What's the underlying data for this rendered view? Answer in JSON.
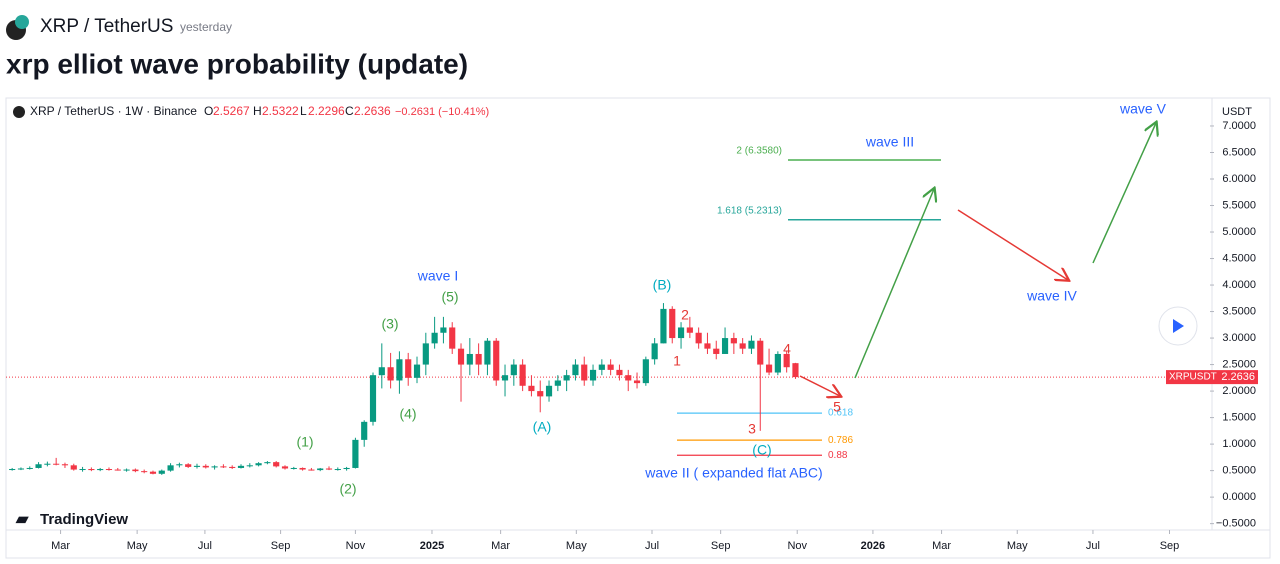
{
  "header": {
    "symbol": "XRP / TetherUS",
    "time": "yesterday",
    "title": "xrp elliot wave probability (update)"
  },
  "chart_data": {
    "type": "candlestick",
    "legend": {
      "symbol": "XRP / TetherUS · 1W · Binance",
      "o_label": "O",
      "o": "2.5267",
      "h_label": "H",
      "h": "2.5322",
      "l_label": "L",
      "l": "2.2296",
      "c_label": "C",
      "c": "2.2636",
      "change": "−0.2631 (−10.41%)"
    },
    "currency": "USDT",
    "brand": "TradingView",
    "up_color": "#089981",
    "down_color": "#f23645",
    "x": [
      0,
      1,
      2,
      3,
      4,
      5,
      6,
      7,
      8,
      9,
      10,
      11,
      12,
      13,
      14,
      15,
      16,
      17,
      18,
      19,
      20,
      21,
      22,
      23,
      24,
      25,
      26,
      27,
      28,
      29,
      30,
      31,
      32,
      33,
      34,
      35,
      36,
      37,
      38,
      39,
      40,
      41,
      42,
      43,
      44,
      45,
      46,
      47,
      48,
      49,
      50,
      51,
      52,
      53,
      54,
      55,
      56,
      57,
      58,
      59,
      60,
      61,
      62,
      63,
      64,
      65,
      66,
      67,
      68,
      69,
      70,
      71,
      72,
      73,
      74,
      75,
      76,
      77,
      78,
      79,
      80,
      81,
      82,
      83,
      84,
      85,
      86,
      87,
      88,
      89
    ],
    "candles": [
      [
        0.52,
        0.55,
        0.5,
        0.53
      ],
      [
        0.53,
        0.56,
        0.51,
        0.54
      ],
      [
        0.54,
        0.58,
        0.52,
        0.55
      ],
      [
        0.55,
        0.66,
        0.54,
        0.62
      ],
      [
        0.62,
        0.67,
        0.58,
        0.63
      ],
      [
        0.63,
        0.74,
        0.6,
        0.62
      ],
      [
        0.62,
        0.65,
        0.55,
        0.6
      ],
      [
        0.6,
        0.63,
        0.5,
        0.52
      ],
      [
        0.52,
        0.57,
        0.48,
        0.53
      ],
      [
        0.53,
        0.56,
        0.49,
        0.51
      ],
      [
        0.51,
        0.55,
        0.49,
        0.53
      ],
      [
        0.53,
        0.56,
        0.5,
        0.52
      ],
      [
        0.52,
        0.55,
        0.5,
        0.51
      ],
      [
        0.51,
        0.54,
        0.48,
        0.52
      ],
      [
        0.52,
        0.54,
        0.47,
        0.49
      ],
      [
        0.49,
        0.52,
        0.45,
        0.48
      ],
      [
        0.48,
        0.5,
        0.43,
        0.44
      ],
      [
        0.44,
        0.52,
        0.42,
        0.5
      ],
      [
        0.5,
        0.64,
        0.48,
        0.6
      ],
      [
        0.6,
        0.65,
        0.56,
        0.62
      ],
      [
        0.62,
        0.64,
        0.55,
        0.57
      ],
      [
        0.57,
        0.63,
        0.54,
        0.59
      ],
      [
        0.59,
        0.62,
        0.54,
        0.56
      ],
      [
        0.56,
        0.6,
        0.52,
        0.58
      ],
      [
        0.58,
        0.62,
        0.55,
        0.57
      ],
      [
        0.57,
        0.6,
        0.53,
        0.55
      ],
      [
        0.55,
        0.62,
        0.54,
        0.59
      ],
      [
        0.59,
        0.64,
        0.56,
        0.6
      ],
      [
        0.6,
        0.66,
        0.58,
        0.64
      ],
      [
        0.64,
        0.68,
        0.62,
        0.66
      ],
      [
        0.66,
        0.68,
        0.56,
        0.58
      ],
      [
        0.58,
        0.6,
        0.52,
        0.54
      ],
      [
        0.54,
        0.57,
        0.52,
        0.55
      ],
      [
        0.55,
        0.56,
        0.5,
        0.52
      ],
      [
        0.52,
        0.55,
        0.5,
        0.51
      ],
      [
        0.51,
        0.55,
        0.49,
        0.54
      ],
      [
        0.54,
        0.58,
        0.51,
        0.52
      ],
      [
        0.52,
        0.56,
        0.5,
        0.53
      ],
      [
        0.53,
        0.57,
        0.5,
        0.55
      ],
      [
        0.55,
        1.12,
        0.54,
        1.08
      ],
      [
        1.08,
        1.45,
        0.95,
        1.42
      ],
      [
        1.42,
        2.35,
        1.35,
        2.3
      ],
      [
        2.3,
        2.9,
        2.05,
        2.45
      ],
      [
        2.45,
        2.72,
        2.05,
        2.2
      ],
      [
        2.2,
        2.75,
        1.95,
        2.6
      ],
      [
        2.6,
        2.72,
        2.1,
        2.25
      ],
      [
        2.25,
        2.65,
        2.15,
        2.5
      ],
      [
        2.5,
        3.1,
        2.3,
        2.9
      ],
      [
        2.9,
        3.4,
        2.8,
        3.1
      ],
      [
        3.1,
        3.4,
        2.9,
        3.2
      ],
      [
        3.2,
        3.3,
        2.7,
        2.8
      ],
      [
        2.8,
        2.9,
        1.8,
        2.5
      ],
      [
        2.5,
        3.0,
        2.3,
        2.7
      ],
      [
        2.7,
        2.9,
        2.3,
        2.5
      ],
      [
        2.5,
        3.0,
        2.3,
        2.95
      ],
      [
        2.95,
        3.0,
        2.1,
        2.2
      ],
      [
        2.2,
        2.5,
        1.9,
        2.3
      ],
      [
        2.3,
        2.6,
        2.1,
        2.5
      ],
      [
        2.5,
        2.6,
        2.0,
        2.1
      ],
      [
        2.1,
        2.3,
        1.9,
        2.0
      ],
      [
        2.0,
        2.2,
        1.6,
        1.9
      ],
      [
        1.9,
        2.2,
        1.8,
        2.1
      ],
      [
        2.1,
        2.3,
        2.0,
        2.2
      ],
      [
        2.2,
        2.4,
        2.0,
        2.3
      ],
      [
        2.3,
        2.6,
        2.2,
        2.5
      ],
      [
        2.5,
        2.65,
        2.1,
        2.2
      ],
      [
        2.2,
        2.5,
        2.1,
        2.4
      ],
      [
        2.4,
        2.6,
        2.3,
        2.5
      ],
      [
        2.5,
        2.6,
        2.3,
        2.4
      ],
      [
        2.4,
        2.5,
        2.2,
        2.3
      ],
      [
        2.3,
        2.4,
        2.0,
        2.2
      ],
      [
        2.2,
        2.35,
        2.05,
        2.15
      ],
      [
        2.15,
        2.65,
        2.1,
        2.6
      ],
      [
        2.6,
        3.0,
        2.5,
        2.9
      ],
      [
        2.9,
        3.66,
        2.9,
        3.55
      ],
      [
        3.55,
        3.6,
        2.9,
        3.0
      ],
      [
        3.0,
        3.3,
        2.8,
        3.2
      ],
      [
        3.2,
        3.4,
        3.0,
        3.1
      ],
      [
        3.1,
        3.2,
        2.8,
        2.9
      ],
      [
        2.9,
        3.1,
        2.7,
        2.8
      ],
      [
        2.8,
        2.95,
        2.6,
        2.7
      ],
      [
        2.7,
        3.2,
        2.7,
        3.0
      ],
      [
        3.0,
        3.1,
        2.7,
        2.9
      ],
      [
        2.9,
        3.0,
        2.7,
        2.8
      ],
      [
        2.8,
        3.05,
        2.7,
        2.95
      ],
      [
        2.95,
        3.0,
        1.25,
        2.5
      ],
      [
        2.5,
        2.8,
        2.3,
        2.35
      ],
      [
        2.35,
        2.75,
        2.3,
        2.7
      ],
      [
        2.7,
        2.75,
        2.35,
        2.45
      ],
      [
        2.5267,
        2.5322,
        2.2296,
        2.2636
      ]
    ],
    "last_price": {
      "name": "XRPUSDT",
      "value": 2.2636,
      "label": "2.2636",
      "color": "#f23645"
    },
    "xlim": [
      -0.7,
      136.1
    ],
    "xticks": [
      {
        "value": 5.5,
        "label": "Mar"
      },
      {
        "value": 14.2,
        "label": "May"
      },
      {
        "value": 21.9,
        "label": "Jul"
      },
      {
        "value": 30.5,
        "label": "Sep"
      },
      {
        "value": 39.0,
        "label": "Nov"
      },
      {
        "value": 47.7,
        "label": "2025"
      },
      {
        "value": 55.5,
        "label": "Mar"
      },
      {
        "value": 64.1,
        "label": "May"
      },
      {
        "value": 72.7,
        "label": "Jul"
      },
      {
        "value": 80.5,
        "label": "Sep"
      },
      {
        "value": 89.2,
        "label": "Nov"
      },
      {
        "value": 97.8,
        "label": "2026"
      },
      {
        "value": 105.6,
        "label": "Mar"
      },
      {
        "value": 114.2,
        "label": "May"
      },
      {
        "value": 122.8,
        "label": "Jul"
      },
      {
        "value": 131.5,
        "label": "Sep"
      }
    ],
    "ylim": [
      -0.62,
      7.49
    ],
    "yticks": [
      {
        "value": -0.5,
        "label": "−0.5000"
      },
      {
        "value": 0,
        "label": "0.0000"
      },
      {
        "value": 0.5,
        "label": "0.5000"
      },
      {
        "value": 1,
        "label": "1.0000"
      },
      {
        "value": 1.5,
        "label": "1.5000"
      },
      {
        "value": 2,
        "label": "2.0000"
      },
      {
        "value": 2.5,
        "label": "2.5000"
      },
      {
        "value": 3,
        "label": "3.0000"
      },
      {
        "value": 3.5,
        "label": "3.5000"
      },
      {
        "value": 4,
        "label": "4.0000"
      },
      {
        "value": 4.5,
        "label": "4.5000"
      },
      {
        "value": 5,
        "label": "5.0000"
      },
      {
        "value": 5.5,
        "label": "5.5000"
      },
      {
        "value": 6,
        "label": "6.0000"
      },
      {
        "value": 6.5,
        "label": "6.5000"
      },
      {
        "value": 7,
        "label": "7.0000"
      }
    ],
    "fib_levels": [
      {
        "label": "2 (6.3580)",
        "value": 6.358,
        "color": "#4caf50"
      },
      {
        "label": "1.618 (5.2313)",
        "value": 5.2313,
        "color": "#26a69a"
      },
      {
        "label": "0.618",
        "value": 1.585,
        "color": "#4fc3f7"
      },
      {
        "label": "0.786",
        "value": 1.075,
        "color": "#ff9800"
      },
      {
        "label": "0.88",
        "value": 0.79,
        "color": "#f23645"
      }
    ],
    "annotations": [
      {
        "text": "wave I",
        "color": "#2962ff"
      },
      {
        "text": "(5)",
        "color": "#43a047"
      },
      {
        "text": "(3)",
        "color": "#43a047"
      },
      {
        "text": "(4)",
        "color": "#43a047"
      },
      {
        "text": "(1)",
        "color": "#43a047"
      },
      {
        "text": "(2)",
        "color": "#43a047"
      },
      {
        "text": "(A)",
        "color": "#00acc1"
      },
      {
        "text": "(B)",
        "color": "#00acc1"
      },
      {
        "text": "(C)",
        "color": "#00acc1"
      },
      {
        "text": "1",
        "color": "#e53935"
      },
      {
        "text": "2",
        "color": "#e53935"
      },
      {
        "text": "3",
        "color": "#e53935"
      },
      {
        "text": "4",
        "color": "#e53935"
      },
      {
        "text": "5",
        "color": "#e53935"
      },
      {
        "text": "wave II ( expanded flat ABC)",
        "color": "#2962ff"
      },
      {
        "text": "wave III",
        "color": "#2962ff"
      },
      {
        "text": "wave IV",
        "color": "#2962ff"
      },
      {
        "text": "wave V",
        "color": "#2962ff"
      }
    ]
  }
}
